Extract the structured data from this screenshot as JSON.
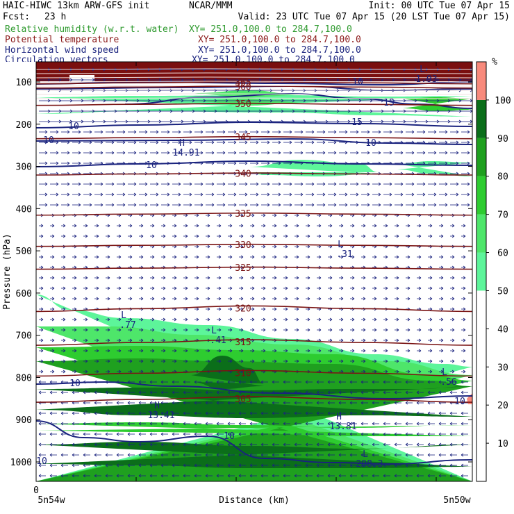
{
  "header": {
    "model": "HAIC-HIWC 13km ARW-GFS init",
    "org": "NCAR/MMM",
    "init": "Init: 00 UTC Tue 07 Apr 15",
    "fcst_label": "Fcst:",
    "fcst_value": "23 h",
    "valid": "Valid: 23 UTC Tue 07 Apr 15 (20 LST Tue 07 Apr 15)"
  },
  "fields": [
    {
      "name": "Relative humidity (w.r.t. water)",
      "xy": "XY= 251.0,100.0 to 284.7,100.0",
      "color": "#2e9a2e"
    },
    {
      "name": "Potential temperature",
      "xy": "XY= 251.0,100.0 to 284.7,100.0",
      "color": "#8b1a1a"
    },
    {
      "name": "Horizontal wind speed",
      "xy": "XY= 251.0,100.0 to 284.7,100.0",
      "color": "#1a237e"
    },
    {
      "name": "Circulation vectors",
      "xy": "XY= 251.0,100.0 to 284.7,100.0",
      "color": "#1a237e"
    }
  ],
  "chart_data": {
    "type": "heatmap",
    "title": "",
    "xlabel": "Distance (km)",
    "ylabel": "Pressure (hPa)",
    "x_ticks": [
      "0"
    ],
    "x_left_label": "5n54w",
    "x_right_label": "5n50w",
    "y_ticks": [
      100,
      200,
      300,
      400,
      500,
      600,
      700,
      800,
      900,
      1000
    ],
    "ylim": [
      60,
      1050
    ],
    "colorbar": {
      "unit": "%",
      "ticks": [
        10,
        20,
        30,
        40,
        50,
        60,
        70,
        80,
        90,
        100
      ],
      "bands": [
        {
          "from": 50,
          "to": 60,
          "color": "#5df59a"
        },
        {
          "from": 60,
          "to": 70,
          "color": "#4ee66a"
        },
        {
          "from": 70,
          "to": 80,
          "color": "#2ecc30"
        },
        {
          "from": 80,
          "to": 90,
          "color": "#1fa01f"
        },
        {
          "from": 90,
          "to": 100,
          "color": "#0b6e1a"
        },
        {
          "from": 100,
          "to": 110,
          "color": "#f88a7c"
        }
      ]
    },
    "theta_contours": [
      {
        "value": "305",
        "p": 852
      },
      {
        "value": "310",
        "p": 790
      },
      {
        "value": "315",
        "p": 717
      },
      {
        "value": "320",
        "p": 637
      },
      {
        "value": "325",
        "p": 541
      },
      {
        "value": "330",
        "p": 487
      },
      {
        "value": "335",
        "p": 413
      },
      {
        "value": "340",
        "p": 318
      },
      {
        "value": "345",
        "p": 232
      },
      {
        "value": "350",
        "p": 153
      },
      {
        "value": "360",
        "p": 112
      },
      {
        "value": "365",
        "p": 102
      }
    ],
    "wind_labels": [
      "10",
      "10",
      "10",
      "10",
      "10",
      "15",
      "15",
      "10",
      "10",
      "10",
      "10"
    ],
    "extrema": [
      {
        "kind": "H",
        "value": "14.91"
      },
      {
        "kind": "H",
        "value": "13.41"
      },
      {
        "kind": "H",
        "value": "13.81"
      },
      {
        "kind": "L",
        "value": ".31"
      },
      {
        "kind": "L",
        "value": ".77"
      },
      {
        "kind": "L",
        "value": ".41"
      },
      {
        "kind": "L",
        "value": ".56"
      },
      {
        "kind": "L",
        "value": "298.3"
      },
      {
        "kind": "L",
        "value": "1.93"
      }
    ]
  }
}
